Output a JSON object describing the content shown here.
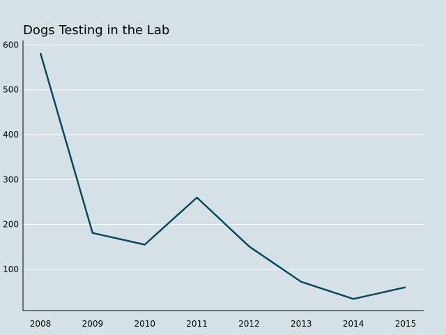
{
  "chart_data": {
    "type": "line",
    "title": "Dogs Testing in the Lab",
    "xlabel": "",
    "ylabel": "",
    "x": [
      "2008",
      "2009",
      "2010",
      "2011",
      "2012",
      "2013",
      "2014",
      "2015"
    ],
    "series": [
      {
        "values": [
          582,
          181,
          155,
          260,
          151,
          72,
          34,
          60
        ],
        "color": "#004c5e"
      }
    ],
    "ylim": [
      8,
      610
    ],
    "yticks": [
      100,
      200,
      300,
      400,
      500,
      600
    ],
    "grid": "horizontal",
    "legend": "none",
    "background_color": "#d5e1e7",
    "grid_color": "#ffffff"
  }
}
